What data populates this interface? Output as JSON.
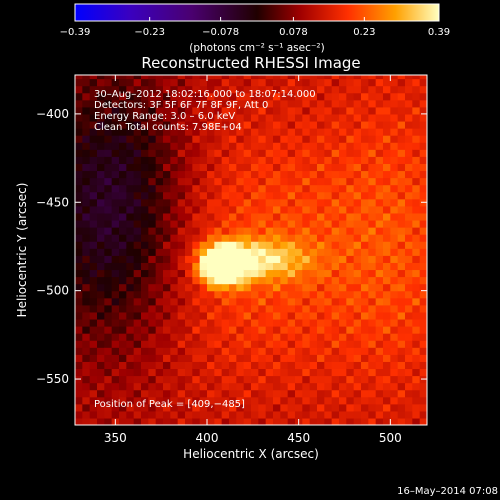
{
  "chart_data": {
    "type": "heatmap",
    "title": "Reconstructed RHESSI Image",
    "xlabel": "Heliocentric X (arcsec)",
    "ylabel": "Heliocentric Y (arcsec)",
    "xlim": [
      328,
      520
    ],
    "ylim": [
      -576,
      -378
    ],
    "x_ticks": [
      350,
      400,
      450,
      500
    ],
    "x_tick_labels": [
      "350",
      "400",
      "450",
      "500"
    ],
    "y_ticks": [
      -400,
      -450,
      -500,
      -550
    ],
    "y_tick_labels": [
      "−400",
      "−450",
      "−500",
      "−550"
    ],
    "colorbar": {
      "min": -0.39,
      "max": 0.39,
      "ticks": [
        -0.39,
        -0.23,
        -0.078,
        0.078,
        0.23,
        0.39
      ],
      "tick_labels": [
        "−0.39",
        "−0.23",
        "−0.078",
        "0.078",
        "0.23",
        "0.39"
      ],
      "units_label": "(photons cm⁻² s⁻¹ asec⁻²)"
    },
    "annotation_lines": [
      "30–Aug–2012 18:02:16.000 to 18:07:14.000",
      "Detectors: 3F 5F 6F 7F 8F 9F, Att 0",
      "Energy Range: 3.0 – 6.0 keV",
      "Clean     Total counts: 7.98E+04"
    ],
    "peak_label": "Position of Peak = [409,−485]",
    "peak": [
      409,
      -485
    ],
    "sources": [
      {
        "x": 409,
        "y": -485,
        "sigma_x": 8,
        "sigma_y": 7,
        "amplitude": 0.55
      },
      {
        "x": 430,
        "y": -482,
        "sigma_x": 18,
        "sigma_y": 8,
        "amplitude": 0.16
      },
      {
        "x": 420,
        "y": -478,
        "sigma_x": 50,
        "sigma_y": 55,
        "amplitude": 0.1
      },
      {
        "x": 505,
        "y": -470,
        "sigma_x": 30,
        "sigma_y": 70,
        "amplitude": 0.08
      }
    ],
    "negative_region": {
      "x": 350,
      "y": -455,
      "sigma_x": 30,
      "sigma_y": 55,
      "amplitude": -0.2
    },
    "background_level": 0.12
  },
  "footer": {
    "timestamp": "16–May–2014 07:08"
  }
}
